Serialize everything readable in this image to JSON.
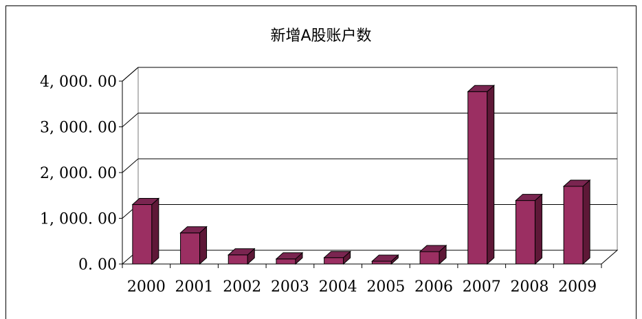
{
  "chart_data": {
    "type": "bar",
    "title": "新增A股账户数",
    "categories": [
      "2000",
      "2001",
      "2002",
      "2003",
      "2004",
      "2005",
      "2006",
      "2007",
      "2008",
      "2009"
    ],
    "series": [
      {
        "values": [
          1300,
          680,
          200,
          110,
          140,
          60,
          270,
          3770,
          1390,
          1700
        ]
      }
    ],
    "y_tick_labels": [
      "0. 00",
      "1, 000. 00",
      "2, 000. 00",
      "3, 000. 00",
      "4, 000. 00"
    ],
    "ylim": [
      0,
      4000
    ],
    "grid": true,
    "three_d": true,
    "colors": {
      "bar_front": "#9b2f62",
      "bar_side": "#5e1837",
      "bar_top": "#7a2550",
      "outline": "#000000"
    }
  }
}
